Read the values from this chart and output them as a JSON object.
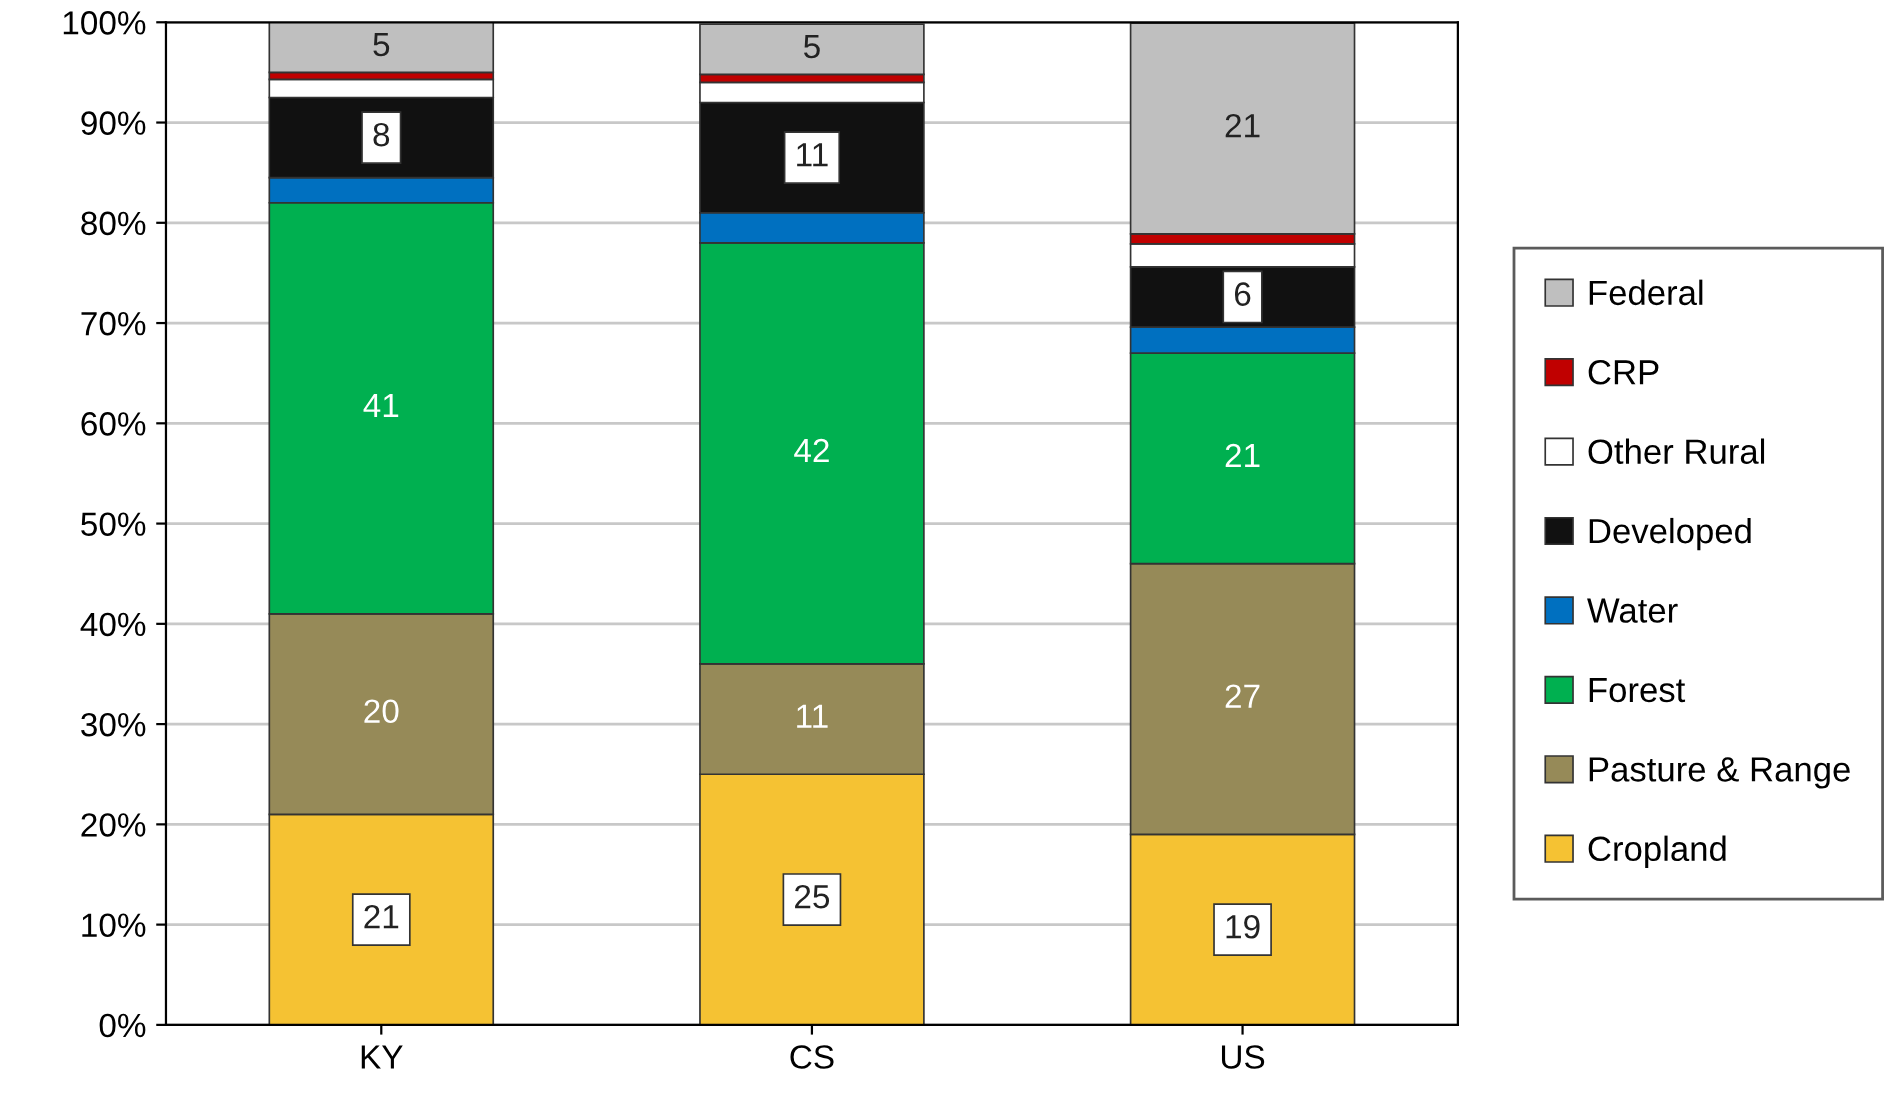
{
  "chart_data": {
    "type": "bar",
    "stacked": true,
    "categories": [
      "KY",
      "CS",
      "US"
    ],
    "series": [
      {
        "name": "Cropland",
        "color": "#f5c233",
        "values": [
          21,
          25,
          19
        ],
        "value_labels": [
          "21",
          "25",
          "19"
        ]
      },
      {
        "name": "Pasture & Range",
        "color": "#968a58",
        "values": [
          20,
          11,
          27
        ],
        "value_labels": [
          "20",
          "11",
          "27"
        ]
      },
      {
        "name": "Forest",
        "color": "#00b050",
        "values": [
          41,
          42,
          21
        ],
        "value_labels": [
          "41",
          "42",
          "21"
        ]
      },
      {
        "name": "Water",
        "color": "#0070c0",
        "values": [
          2.5,
          3,
          2.6
        ],
        "value_labels": [
          null,
          null,
          null
        ]
      },
      {
        "name": "Developed",
        "color": "#111111",
        "values": [
          8,
          11,
          6
        ],
        "value_labels": [
          "8",
          "11",
          "6"
        ]
      },
      {
        "name": "Other Rural",
        "color": "#ffffff",
        "values": [
          1.8,
          2,
          2.3
        ],
        "value_labels": [
          null,
          null,
          null
        ]
      },
      {
        "name": "CRP",
        "color": "#c00000",
        "values": [
          0.7,
          0.8,
          1
        ],
        "value_labels": [
          null,
          null,
          null
        ]
      },
      {
        "name": "Federal",
        "color": "#bfbfbf",
        "values": [
          5,
          5,
          21
        ],
        "value_labels": [
          "5",
          "5",
          "21"
        ]
      }
    ],
    "ylim": [
      0,
      100
    ],
    "yticks": [
      {
        "value": 0,
        "label": "0%"
      },
      {
        "value": 10,
        "label": "10%"
      },
      {
        "value": 20,
        "label": "20%"
      },
      {
        "value": 30,
        "label": "30%"
      },
      {
        "value": 40,
        "label": "40%"
      },
      {
        "value": 50,
        "label": "50%"
      },
      {
        "value": 60,
        "label": "60%"
      },
      {
        "value": 70,
        "label": "70%"
      },
      {
        "value": 80,
        "label": "80%"
      },
      {
        "value": 90,
        "label": "90%"
      },
      {
        "value": 100,
        "label": "100%"
      }
    ],
    "grid": "y",
    "legend": "right"
  }
}
